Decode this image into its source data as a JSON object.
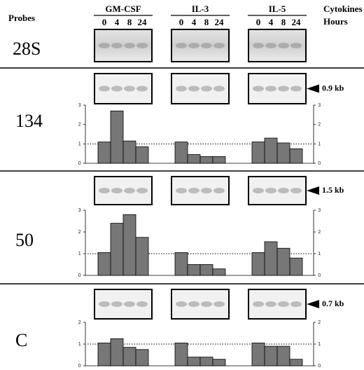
{
  "header": {
    "probes": "Probes",
    "cytokines": "Cytokines",
    "hours": "Hours",
    "groups": [
      "GM-CSF",
      "IL-3",
      "IL-5"
    ],
    "times": [
      "0",
      "4",
      "8",
      "24"
    ]
  },
  "panels": [
    {
      "probe": "28S"
    },
    {
      "probe": "134",
      "band": "0.9 kb",
      "ylim": [
        0,
        3
      ],
      "yticks": [
        0,
        1,
        2,
        3
      ],
      "reference": 1,
      "values": [
        [
          1.1,
          2.7,
          1.15,
          0.85
        ],
        [
          1.1,
          0.45,
          0.35,
          0.35
        ],
        [
          1.1,
          1.3,
          1.05,
          0.75
        ]
      ]
    },
    {
      "probe": "50",
      "band": "1.5 kb",
      "ylim": [
        0,
        3
      ],
      "yticks": [
        0,
        1,
        2,
        3
      ],
      "reference": 1,
      "values": [
        [
          1.05,
          2.4,
          2.8,
          1.75
        ],
        [
          1.05,
          0.5,
          0.5,
          0.3
        ],
        [
          1.05,
          1.55,
          1.25,
          0.8
        ]
      ]
    },
    {
      "probe": "C",
      "band": "0.7 kb",
      "ylim": [
        0,
        2
      ],
      "yticks": [
        0,
        1,
        2
      ],
      "reference": 1,
      "values": [
        [
          1.05,
          1.25,
          0.85,
          0.75
        ],
        [
          1.05,
          0.4,
          0.4,
          0.3
        ],
        [
          1.05,
          0.9,
          0.9,
          0.3
        ]
      ]
    }
  ]
}
